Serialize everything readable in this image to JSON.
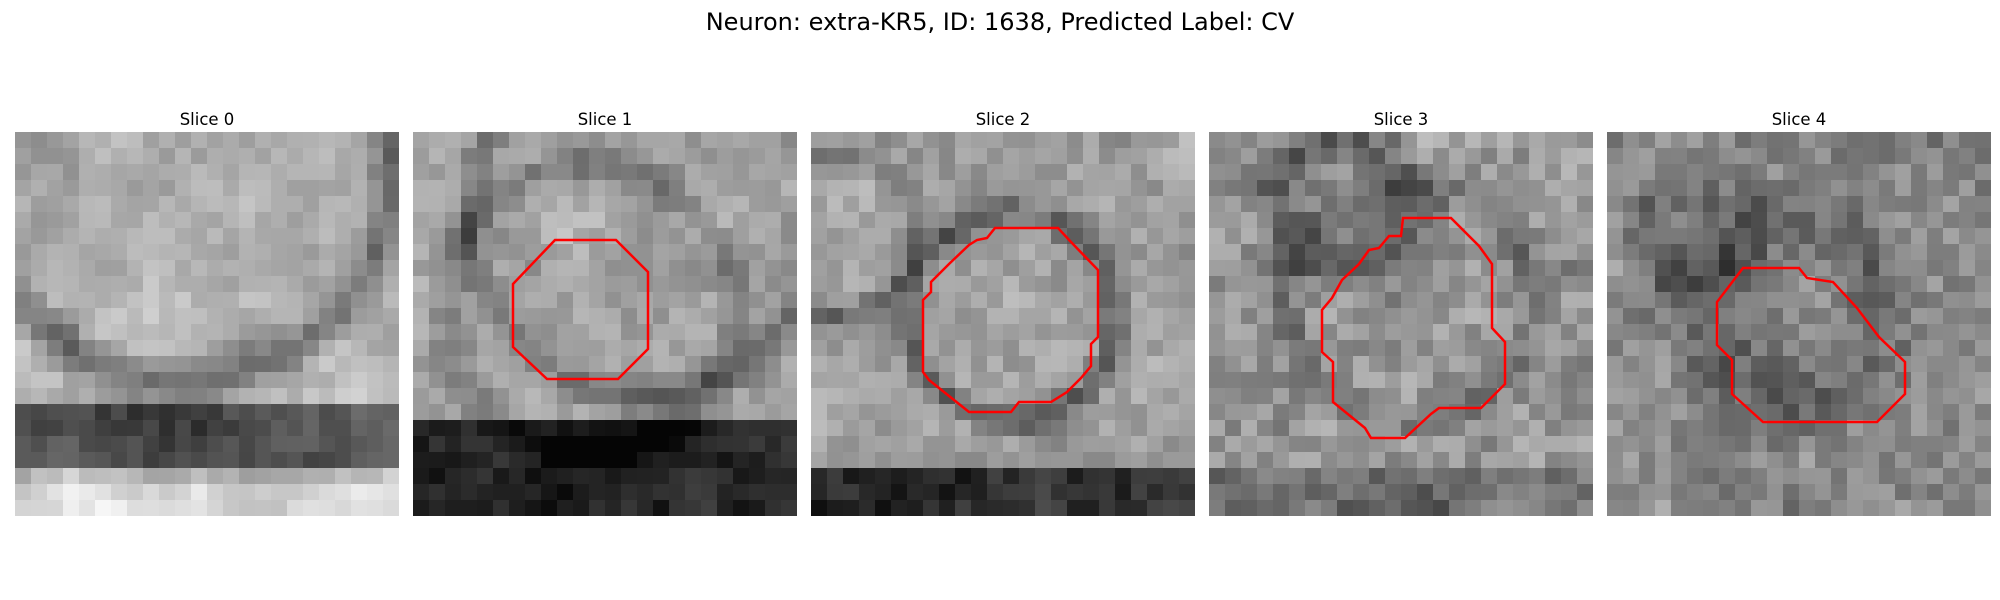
{
  "figure": {
    "title": "Neuron: extra-KR5, ID: 1638, Predicted Label: CV"
  },
  "panels": [
    {
      "title": "Slice 0",
      "has_outline": false
    },
    {
      "title": "Slice 1",
      "has_outline": true
    },
    {
      "title": "Slice 2",
      "has_outline": true
    },
    {
      "title": "Slice 3",
      "has_outline": true
    },
    {
      "title": "Slice 4",
      "has_outline": true
    }
  ],
  "colors": {
    "outline": "#ff0000",
    "background": "#ffffff"
  }
}
